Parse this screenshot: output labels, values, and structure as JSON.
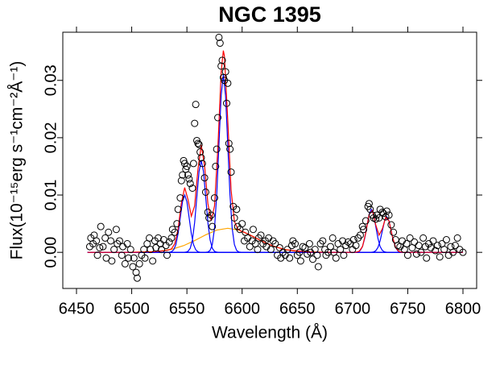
{
  "chart_data": {
    "type": "scatter",
    "title": "NGC 1395",
    "x_label": "Wavelength (Å)",
    "y_label": "Flux(10⁻¹⁵erg s⁻¹cm⁻²Å⁻¹)",
    "xlim": [
      6437.6,
      6812.4
    ],
    "ylim": [
      -0.0063,
      0.0384
    ],
    "xticks": [
      6450,
      6500,
      6550,
      6600,
      6650,
      6700,
      6750,
      6800
    ],
    "yticks": [
      {
        "value": 0,
        "label": "0.00"
      },
      0.01,
      0.02,
      0.03
    ],
    "marker_color": "#000000",
    "x": [
      6462,
      6463,
      6465,
      6466,
      6468,
      6469,
      6471,
      6472,
      6474,
      6476,
      6477,
      6479,
      6481,
      6482,
      6484,
      6486,
      6487,
      6489,
      6491,
      6492,
      6494,
      6496,
      6497,
      6499,
      6501,
      6502,
      6504,
      6505,
      6507,
      6509,
      6511,
      6512,
      6514,
      6516,
      6517,
      6519,
      6521,
      6522,
      6524,
      6526,
      6527,
      6529,
      6531,
      6532,
      6534,
      6536,
      6537,
      6539,
      6541,
      6542,
      6544,
      6545,
      6546,
      6547,
      6548,
      6549,
      6550,
      6551,
      6552,
      6553,
      6555,
      6556,
      6557,
      6558,
      6559,
      6560,
      6561,
      6562,
      6563,
      6564,
      6566,
      6567,
      6569,
      6570,
      6572,
      6573,
      6575,
      6576,
      6577,
      6578,
      6579,
      6580,
      6581,
      6582,
      6583,
      6584,
      6585,
      6586,
      6587,
      6588,
      6589,
      6590,
      6592,
      6593,
      6595,
      6596,
      6598,
      6600,
      6602,
      6603,
      6605,
      6607,
      6609,
      6610,
      6612,
      6614,
      6615,
      6617,
      6619,
      6621,
      6622,
      6624,
      6626,
      6628,
      6630,
      6632,
      6634,
      6635,
      6637,
      6639,
      6641,
      6643,
      6645,
      6646,
      6648,
      6650,
      6652,
      6653,
      6655,
      6657,
      6659,
      6661,
      6662,
      6664,
      6666,
      6668,
      6669,
      6671,
      6673,
      6675,
      6676,
      6678,
      6680,
      6682,
      6683,
      6685,
      6687,
      6689,
      6691,
      6692,
      6694,
      6696,
      6698,
      6700,
      6701,
      6703,
      6705,
      6707,
      6709,
      6710,
      6712,
      6714,
      6715,
      6716,
      6718,
      6719,
      6721,
      6722,
      6724,
      6725,
      6727,
      6728,
      6730,
      6731,
      6733,
      6735,
      6737,
      6739,
      6741,
      6743,
      6745,
      6747,
      6749,
      6750,
      6752,
      6754,
      6756,
      6758,
      6760,
      6762,
      6764,
      6766,
      6767,
      6769,
      6771,
      6773,
      6775,
      6777,
      6779,
      6781,
      6783,
      6785,
      6787,
      6789,
      6791,
      6793,
      6795,
      6797,
      6800
    ],
    "values": [
      0.001,
      0.0025,
      0.0015,
      0.003,
      0.002,
      -0.0005,
      0.0008,
      0.0045,
      0.001,
      0.0025,
      -0.001,
      0.0035,
      0.002,
      -0.0015,
      0.0005,
      0.004,
      0.0015,
      0.002,
      -0.0005,
      0.001,
      -0.002,
      0.0015,
      -0.001,
      0.0005,
      -0.0025,
      -0.001,
      -0.0035,
      -0.0045,
      -0.002,
      -0.0005,
      0.0005,
      -0.001,
      0.0015,
      0.0025,
      0.0005,
      -0.0015,
      0.002,
      0.0008,
      0.0025,
      0.0015,
      0.0005,
      0.0022,
      0.0012,
      -0.0005,
      0.0018,
      0.0025,
      0.004,
      0.0035,
      0.005,
      0.0075,
      0.0095,
      0.0125,
      0.0135,
      0.016,
      0.0155,
      0.0145,
      0.015,
      0.0135,
      0.0128,
      0.012,
      0.0112,
      0.0155,
      0.0225,
      0.0258,
      0.0195,
      0.019,
      0.0188,
      0.0175,
      0.0165,
      0.0155,
      0.013,
      0.0105,
      0.007,
      0.006,
      0.0065,
      0.0045,
      0.0095,
      0.015,
      0.018,
      0.0235,
      0.0375,
      0.0365,
      0.0325,
      0.0335,
      0.0305,
      0.03,
      0.0315,
      0.026,
      0.0295,
      0.019,
      0.018,
      0.014,
      0.008,
      0.006,
      0.0075,
      0.0045,
      0.004,
      0.005,
      0.002,
      0.0035,
      0.0025,
      0.001,
      0.002,
      0.004,
      0.0015,
      0.0005,
      0.0025,
      0.003,
      0.0015,
      0.002,
      0.001,
      0.0025,
      0.0005,
      0.002,
      0.0015,
      -0.0005,
      0.0008,
      -0.001,
      0,
      -0.0005,
      0.0005,
      -0.001,
      0.0012,
      0.002,
      0.0015,
      -0.0005,
      0,
      -0.0015,
      0.001,
      0.0008,
      -0.0003,
      0.0015,
      0,
      -0.0012,
      0.0005,
      -0.0005,
      -0.0025,
      0.0015,
      0.002,
      0.0005,
      -0.0005,
      0,
      0.001,
      0.0025,
      0,
      -0.001,
      0.0015,
      0.0005,
      0.002,
      -0.0005,
      0.0012,
      0.0018,
      0.0015,
      0.0005,
      0.0022,
      0.0012,
      0.0025,
      0.003,
      0.0045,
      0.004,
      0.0055,
      0.008,
      0.0085,
      0.0075,
      0.0065,
      0.006,
      0.0058,
      0.0065,
      0.006,
      0.0075,
      0.007,
      0.0068,
      0.0062,
      0.0072,
      0.0065,
      0.0048,
      0.0035,
      0.0022,
      0.0012,
      0.001,
      0.002,
      0.0005,
      0.0015,
      -0.0005,
      0.0025,
      0.0008,
      0.0018,
      -0.0003,
      0.0012,
      0,
      0.0025,
      0.001,
      -0.001,
      0.0015,
      0.0008,
      0.002,
      0.0003,
      0.0012,
      -0.0008,
      0.0015,
      0.0005,
      0.0022,
      -0.0005,
      0.001,
      0,
      0.0012,
      0.0025,
      0.0005,
      0
    ],
    "lines": [
      {
        "color": "#ffa500",
        "x": [
          6460,
          6487,
          6497,
          6507,
          6517,
          6527,
          6537,
          6547,
          6557,
          6567,
          6577,
          6587,
          6597,
          6607,
          6617,
          6627,
          6637,
          6647,
          6657,
          6667,
          6677,
          6687,
          6800
        ],
        "values": [
          0,
          0,
          1e-05,
          3e-05,
          8e-05,
          0.00024,
          0.00057,
          0.00117,
          0.00205,
          0.00305,
          0.00388,
          0.0042,
          0.00388,
          0.00305,
          0.00205,
          0.00117,
          0.00057,
          0.00024,
          8e-05,
          3e-05,
          1e-05,
          0,
          0
        ]
      },
      {
        "color": "#0000ff",
        "x": [
          6460,
          6532,
          6534,
          6536,
          6538,
          6540,
          6542,
          6544,
          6546,
          6548,
          6550,
          6552,
          6554,
          6556,
          6558,
          6560,
          6562,
          6564,
          6800
        ],
        "values": [
          0,
          0,
          2e-05,
          0.00011,
          0.00044,
          0.00135,
          0.00325,
          0.00607,
          0.00883,
          0.01,
          0.00883,
          0.00607,
          0.00325,
          0.00135,
          0.00044,
          0.00011,
          2e-05,
          0,
          0
        ]
      },
      {
        "color": "#0000ff",
        "x": [
          6460,
          6547,
          6549,
          6551,
          6553,
          6555,
          6557,
          6559,
          6561,
          6563,
          6565,
          6567,
          6569,
          6571,
          6573,
          6575,
          6577,
          6579,
          6800
        ],
        "values": [
          0,
          0,
          4e-05,
          0.00018,
          0.0007,
          0.00216,
          0.0052,
          0.0097,
          0.01412,
          0.016,
          0.01412,
          0.0097,
          0.0052,
          0.00216,
          0.0007,
          0.00018,
          4e-05,
          0,
          0
        ]
      },
      {
        "color": "#0000ff",
        "x": [
          6460,
          6567,
          6569,
          6571,
          6573,
          6575,
          6577,
          6579,
          6581,
          6583,
          6585,
          6587,
          6589,
          6591,
          6593,
          6595,
          6597,
          6599,
          6800
        ],
        "values": [
          0,
          1e-05,
          7e-05,
          0.00034,
          0.00136,
          0.00419,
          0.01007,
          0.0188,
          0.02736,
          0.031,
          0.02736,
          0.0188,
          0.01007,
          0.00419,
          0.00136,
          0.00034,
          7e-05,
          1e-05,
          0
        ]
      },
      {
        "color": "#0000ff",
        "x": [
          6460,
          6701,
          6703,
          6705,
          6707,
          6709,
          6711,
          6713,
          6715,
          6717,
          6719,
          6721,
          6723,
          6725,
          6727,
          6729,
          6731,
          6733,
          6800
        ],
        "values": [
          0,
          0,
          2e-05,
          8e-05,
          0.00033,
          0.00101,
          0.00244,
          0.00455,
          0.00662,
          0.0075,
          0.00662,
          0.00455,
          0.00244,
          0.00101,
          0.00033,
          8e-05,
          2e-05,
          0,
          0
        ]
      },
      {
        "color": "#0000ff",
        "x": [
          6460,
          6715,
          6717,
          6719,
          6721,
          6723,
          6725,
          6727,
          6729,
          6731,
          6733,
          6735,
          6737,
          6739,
          6741,
          6743,
          6745,
          6747,
          6800
        ],
        "values": [
          0,
          0,
          1e-05,
          7e-05,
          0.00027,
          0.00084,
          0.00201,
          0.00376,
          0.00547,
          0.0062,
          0.00547,
          0.00376,
          0.00201,
          0.00084,
          0.00027,
          7e-05,
          1e-05,
          0,
          0
        ]
      },
      {
        "color": "#ff0000",
        "x": [
          6460,
          6480,
          6500,
          6520,
          6530,
          6533,
          6536,
          6539,
          6542,
          6545,
          6548,
          6551,
          6554,
          6557,
          6560,
          6563,
          6566,
          6569,
          6572,
          6575,
          6578,
          6581,
          6583,
          6584,
          6587,
          6590,
          6593,
          6596,
          6599,
          6602,
          6610,
          6620,
          6630,
          6640,
          6660,
          6680,
          6700,
          6703,
          6706,
          6709,
          6712,
          6715,
          6718,
          6721,
          6724,
          6727,
          6730,
          6733,
          6736,
          6739,
          6742,
          6745,
          6750,
          6800
        ],
        "values": [
          0,
          0,
          1e-05,
          0.00012,
          0.0003,
          0.0004,
          0.0006,
          0.0015,
          0.0041,
          0.0086,
          0.0113,
          0.0092,
          0.0063,
          0.0081,
          0.0145,
          0.0187,
          0.0151,
          0.0085,
          0.0055,
          0.0081,
          0.0181,
          0.0314,
          0.0352,
          0.0342,
          0.023,
          0.0109,
          0.0054,
          0.0041,
          0.0037,
          0.0035,
          0.00275,
          0.00176,
          0.00096,
          0.00044,
          6e-05,
          0,
          0,
          2e-05,
          0.00017,
          0.00101,
          0.0034,
          0.0066,
          0.0073,
          0.0048,
          0.003,
          0.0041,
          0.0061,
          0.0055,
          0.00284,
          0.00084,
          0.00014,
          1e-05,
          0,
          0
        ]
      }
    ]
  }
}
